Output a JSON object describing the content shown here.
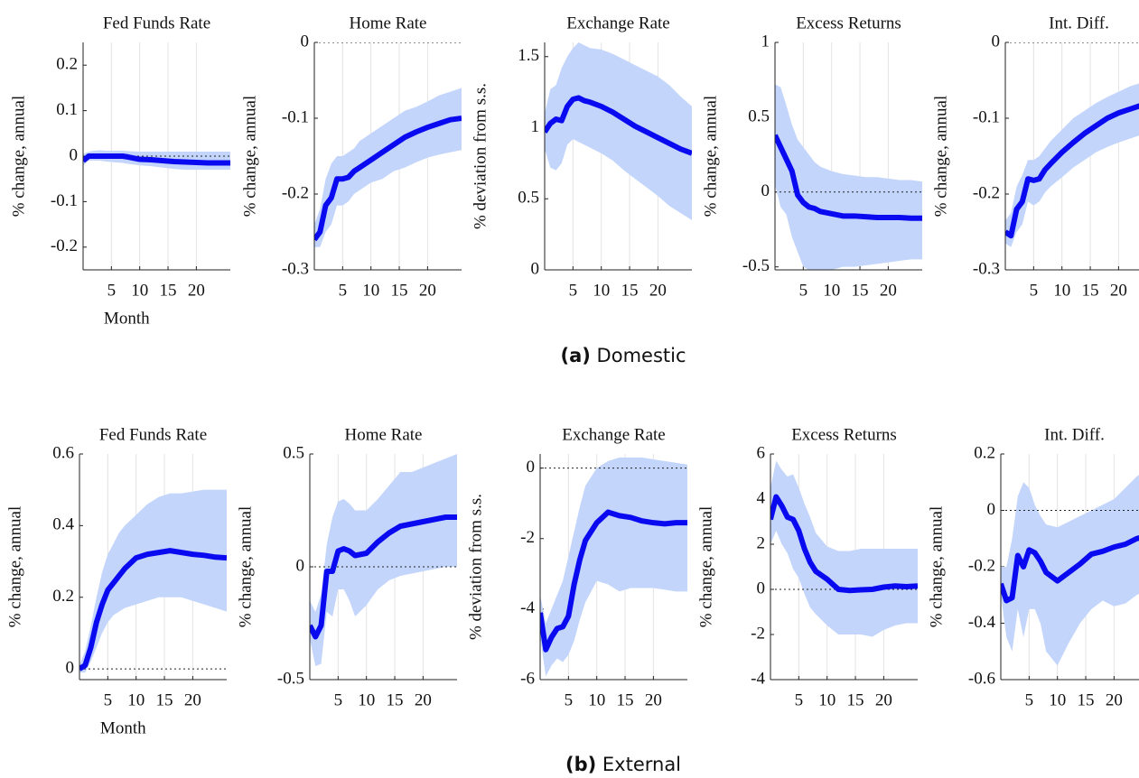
{
  "chart_data": [
    {
      "type": "line",
      "title": "Fed Funds Rate",
      "ylabel": "% change, annual",
      "xlabel": "Month",
      "x": [
        0,
        1,
        2,
        3,
        4,
        5,
        6,
        7,
        8,
        10,
        12,
        14,
        16,
        18,
        20,
        22,
        24,
        26
      ],
      "xlim": [
        0,
        26
      ],
      "xticks": [
        5,
        10,
        15,
        20
      ],
      "ylim": [
        -0.25,
        0.25
      ],
      "yticks": [
        -0.2,
        -0.1,
        0,
        0.1,
        0.2
      ],
      "grid": "x",
      "reference_line": 0,
      "series": [
        {
          "color": "#0a0af0",
          "values": [
            -0.01,
            0,
            0,
            0,
            0,
            0,
            0,
            0,
            -0.002,
            -0.007,
            -0.008,
            -0.01,
            -0.012,
            -0.013,
            -0.014,
            -0.015,
            -0.015,
            -0.015
          ]
        }
      ],
      "band": {
        "color": "#c3d5fb",
        "upper": [
          0.005,
          0.01,
          0.012,
          0.013,
          0.012,
          0.012,
          0.012,
          0.012,
          0.011,
          0.01,
          0.01,
          0.01,
          0.01,
          0.01,
          0.01,
          0.01,
          0.01,
          0.01
        ],
        "lower": [
          -0.02,
          -0.01,
          -0.01,
          -0.01,
          -0.012,
          -0.013,
          -0.014,
          -0.015,
          -0.017,
          -0.02,
          -0.022,
          -0.025,
          -0.028,
          -0.03,
          -0.03,
          -0.03,
          -0.03,
          -0.03
        ]
      }
    },
    {
      "type": "line",
      "title": "Home Rate",
      "ylabel": "% change, annual",
      "x": [
        0,
        1,
        2,
        3,
        4,
        5,
        6,
        7,
        8,
        10,
        12,
        14,
        16,
        18,
        20,
        22,
        24,
        26
      ],
      "xlim": [
        0,
        26
      ],
      "xticks": [
        5,
        10,
        15,
        20
      ],
      "ylim": [
        -0.3,
        0
      ],
      "yticks": [
        -0.3,
        -0.2,
        -0.1,
        0
      ],
      "grid": "x",
      "reference_line": 0,
      "series": [
        {
          "color": "#0a0af0",
          "values": [
            -0.26,
            -0.25,
            -0.215,
            -0.205,
            -0.18,
            -0.18,
            -0.178,
            -0.17,
            -0.165,
            -0.155,
            -0.145,
            -0.135,
            -0.125,
            -0.118,
            -0.112,
            -0.107,
            -0.102,
            -0.1
          ]
        }
      ],
      "band": {
        "color": "#c3d5fb",
        "upper": [
          -0.24,
          -0.22,
          -0.18,
          -0.16,
          -0.15,
          -0.15,
          -0.145,
          -0.14,
          -0.13,
          -0.12,
          -0.11,
          -0.1,
          -0.09,
          -0.085,
          -0.078,
          -0.07,
          -0.065,
          -0.06
        ],
        "lower": [
          -0.27,
          -0.27,
          -0.25,
          -0.24,
          -0.215,
          -0.215,
          -0.21,
          -0.2,
          -0.195,
          -0.185,
          -0.18,
          -0.17,
          -0.165,
          -0.158,
          -0.152,
          -0.148,
          -0.145,
          -0.142
        ]
      }
    },
    {
      "type": "line",
      "title": "Exchange Rate",
      "ylabel": "% deviation from s.s.",
      "x": [
        0,
        1,
        2,
        3,
        4,
        5,
        6,
        7,
        8,
        10,
        12,
        14,
        16,
        18,
        20,
        22,
        24,
        26
      ],
      "xlim": [
        0,
        26
      ],
      "xticks": [
        5,
        10,
        15,
        20
      ],
      "ylim": [
        0,
        1.6
      ],
      "yticks": [
        0,
        0.5,
        1,
        1.5
      ],
      "grid": "x",
      "reference_line": 0,
      "series": [
        {
          "color": "#0a0af0",
          "values": [
            0.97,
            1.03,
            1.06,
            1.05,
            1.15,
            1.2,
            1.21,
            1.19,
            1.18,
            1.15,
            1.11,
            1.06,
            1.01,
            0.97,
            0.93,
            0.89,
            0.85,
            0.82
          ]
        }
      ],
      "band": {
        "color": "#c3d5fb",
        "upper": [
          1.1,
          1.27,
          1.3,
          1.42,
          1.5,
          1.56,
          1.6,
          1.58,
          1.56,
          1.55,
          1.52,
          1.48,
          1.44,
          1.4,
          1.36,
          1.3,
          1.22,
          1.15
        ],
        "lower": [
          0.85,
          0.72,
          0.7,
          0.75,
          0.88,
          0.92,
          0.9,
          0.88,
          0.86,
          0.82,
          0.77,
          0.7,
          0.64,
          0.58,
          0.52,
          0.45,
          0.4,
          0.35
        ]
      }
    },
    {
      "type": "line",
      "title": "Excess Returns",
      "ylabel": "% change, annual",
      "x": [
        0,
        1,
        2,
        3,
        4,
        5,
        6,
        7,
        8,
        10,
        12,
        14,
        16,
        18,
        20,
        22,
        24,
        26
      ],
      "xlim": [
        0,
        26
      ],
      "xticks": [
        5,
        10,
        15,
        20
      ],
      "ylim": [
        -0.52,
        1
      ],
      "yticks": [
        -0.5,
        0,
        0.5,
        1
      ],
      "grid": "x",
      "reference_line": 0,
      "series": [
        {
          "color": "#0a0af0",
          "values": [
            0.38,
            0.3,
            0.22,
            0.14,
            -0.02,
            -0.07,
            -0.1,
            -0.11,
            -0.13,
            -0.145,
            -0.16,
            -0.16,
            -0.165,
            -0.17,
            -0.17,
            -0.17,
            -0.175,
            -0.175
          ]
        }
      ],
      "band": {
        "color": "#c3d5fb",
        "upper": [
          0.72,
          0.7,
          0.58,
          0.45,
          0.35,
          0.3,
          0.25,
          0.2,
          0.17,
          0.14,
          0.12,
          0.11,
          0.1,
          0.1,
          0.09,
          0.08,
          0.08,
          0.07
        ],
        "lower": [
          0.05,
          -0.1,
          -0.15,
          -0.3,
          -0.4,
          -0.5,
          -0.52,
          -0.52,
          -0.52,
          -0.52,
          -0.5,
          -0.5,
          -0.49,
          -0.48,
          -0.47,
          -0.46,
          -0.45,
          -0.45
        ]
      }
    },
    {
      "type": "line",
      "title": "Int. Diff.",
      "ylabel": "% change, annual",
      "x": [
        0,
        1,
        2,
        3,
        4,
        5,
        6,
        7,
        8,
        10,
        12,
        14,
        16,
        18,
        20,
        22,
        24,
        26
      ],
      "xlim": [
        0,
        26
      ],
      "xticks": [
        5,
        10,
        15,
        20
      ],
      "ylim": [
        -0.3,
        0
      ],
      "yticks": [
        -0.3,
        -0.2,
        -0.1,
        0
      ],
      "grid": "x",
      "reference_line": 0,
      "series": [
        {
          "color": "#0a0af0",
          "values": [
            -0.25,
            -0.255,
            -0.22,
            -0.21,
            -0.18,
            -0.182,
            -0.18,
            -0.168,
            -0.16,
            -0.145,
            -0.132,
            -0.12,
            -0.11,
            -0.1,
            -0.093,
            -0.088,
            -0.083,
            -0.08
          ]
        }
      ],
      "band": {
        "color": "#c3d5fb",
        "upper": [
          -0.235,
          -0.225,
          -0.19,
          -0.175,
          -0.155,
          -0.155,
          -0.15,
          -0.14,
          -0.13,
          -0.115,
          -0.1,
          -0.09,
          -0.08,
          -0.072,
          -0.065,
          -0.058,
          -0.053,
          -0.05
        ],
        "lower": [
          -0.265,
          -0.27,
          -0.25,
          -0.24,
          -0.21,
          -0.215,
          -0.21,
          -0.198,
          -0.19,
          -0.178,
          -0.165,
          -0.155,
          -0.145,
          -0.138,
          -0.132,
          -0.127,
          -0.122,
          -0.12
        ]
      }
    },
    {
      "type": "line",
      "title": "Fed Funds Rate",
      "ylabel": "% change, annual",
      "xlabel": "Month",
      "x": [
        0,
        1,
        2,
        3,
        4,
        5,
        6,
        7,
        8,
        10,
        12,
        14,
        16,
        18,
        20,
        22,
        24,
        26
      ],
      "xlim": [
        0,
        26
      ],
      "xticks": [
        5,
        10,
        15,
        20
      ],
      "ylim": [
        -0.03,
        0.6
      ],
      "yticks": [
        0,
        0.2,
        0.4,
        0.6
      ],
      "grid": "x",
      "reference_line": 0,
      "series": [
        {
          "color": "#0a0af0",
          "values": [
            0,
            0.01,
            0.06,
            0.13,
            0.18,
            0.22,
            0.24,
            0.26,
            0.28,
            0.31,
            0.32,
            0.325,
            0.33,
            0.325,
            0.32,
            0.317,
            0.312,
            0.31
          ]
        }
      ],
      "band": {
        "color": "#c3d5fb",
        "upper": [
          0.01,
          0.05,
          0.12,
          0.2,
          0.27,
          0.32,
          0.35,
          0.38,
          0.4,
          0.43,
          0.46,
          0.48,
          0.49,
          0.49,
          0.495,
          0.5,
          0.5,
          0.5
        ],
        "lower": [
          -0.01,
          -0.01,
          0.02,
          0.06,
          0.1,
          0.13,
          0.15,
          0.16,
          0.17,
          0.18,
          0.19,
          0.2,
          0.2,
          0.2,
          0.19,
          0.18,
          0.17,
          0.16
        ]
      }
    },
    {
      "type": "line",
      "title": "Home Rate",
      "ylabel": "% change, annual",
      "x": [
        0,
        1,
        2,
        3,
        4,
        5,
        6,
        7,
        8,
        10,
        12,
        14,
        16,
        18,
        20,
        22,
        24,
        26
      ],
      "xlim": [
        0,
        26
      ],
      "xticks": [
        5,
        10,
        15,
        20
      ],
      "ylim": [
        -0.5,
        0.5
      ],
      "yticks": [
        -0.5,
        0,
        0.5
      ],
      "grid": "x",
      "reference_line": 0,
      "series": [
        {
          "color": "#0a0af0",
          "values": [
            -0.26,
            -0.31,
            -0.26,
            -0.02,
            -0.02,
            0.07,
            0.08,
            0.07,
            0.05,
            0.06,
            0.11,
            0.15,
            0.18,
            0.19,
            0.2,
            0.21,
            0.22,
            0.22
          ]
        }
      ],
      "band": {
        "color": "#c3d5fb",
        "upper": [
          -0.15,
          -0.2,
          -0.12,
          0.1,
          0.22,
          0.29,
          0.3,
          0.28,
          0.25,
          0.25,
          0.3,
          0.36,
          0.42,
          0.42,
          0.44,
          0.46,
          0.48,
          0.5
        ],
        "lower": [
          -0.32,
          -0.44,
          -0.43,
          -0.2,
          -0.22,
          -0.1,
          -0.1,
          -0.15,
          -0.22,
          -0.17,
          -0.1,
          -0.06,
          -0.04,
          -0.03,
          -0.02,
          -0.01,
          0,
          0
        ]
      }
    },
    {
      "type": "line",
      "title": "Exchange Rate",
      "ylabel": "% deviation from s.s.",
      "x": [
        0,
        1,
        2,
        3,
        4,
        5,
        6,
        7,
        8,
        10,
        12,
        14,
        16,
        18,
        20,
        22,
        24,
        26
      ],
      "xlim": [
        0,
        26
      ],
      "xticks": [
        5,
        10,
        15,
        20
      ],
      "ylim": [
        -6,
        0.4
      ],
      "yticks": [
        -6,
        -4,
        -2,
        0
      ],
      "grid": "x",
      "reference_line": 0,
      "series": [
        {
          "color": "#0a0af0",
          "values": [
            -4.1,
            -5.15,
            -4.8,
            -4.55,
            -4.5,
            -4.2,
            -3.3,
            -2.6,
            -2.05,
            -1.55,
            -1.25,
            -1.35,
            -1.4,
            -1.5,
            -1.55,
            -1.58,
            -1.55,
            -1.55
          ]
        }
      ],
      "band": {
        "color": "#c3d5fb",
        "upper": [
          -3.6,
          -4.4,
          -4,
          -3.6,
          -3.2,
          -2.5,
          -1.8,
          -1.1,
          -0.5,
          0,
          0.2,
          0.3,
          0.3,
          0.3,
          0.25,
          0.2,
          0.15,
          0.1
        ],
        "lower": [
          -4.8,
          -5.9,
          -5.6,
          -5.4,
          -5.5,
          -5.3,
          -4.9,
          -4.3,
          -3.8,
          -3.2,
          -3.3,
          -3.5,
          -3.4,
          -3.4,
          -3.4,
          -3.45,
          -3.5,
          -3.5
        ]
      }
    },
    {
      "type": "line",
      "title": "Excess Returns",
      "ylabel": "% change, annual",
      "x": [
        0,
        1,
        2,
        3,
        4,
        5,
        6,
        7,
        8,
        10,
        12,
        14,
        16,
        18,
        20,
        22,
        24,
        26
      ],
      "xlim": [
        0,
        26
      ],
      "xticks": [
        5,
        10,
        15,
        20
      ],
      "ylim": [
        -4,
        6
      ],
      "yticks": [
        -4,
        -2,
        0,
        2,
        4,
        6
      ],
      "grid": "x",
      "reference_line": 0,
      "series": [
        {
          "color": "#0a0af0",
          "values": [
            3.1,
            4.1,
            3.7,
            3.2,
            3.1,
            2.6,
            1.8,
            1.2,
            0.8,
            0.45,
            0,
            -0.05,
            -0.02,
            0,
            0.1,
            0.15,
            0.12,
            0.15
          ]
        }
      ],
      "band": {
        "color": "#c3d5fb",
        "upper": [
          4.5,
          5.7,
          5.3,
          5,
          5.1,
          4.5,
          3.8,
          3.2,
          2.5,
          1.9,
          1.7,
          1.7,
          1.8,
          1.8,
          1.8,
          1.8,
          1.8,
          1.8
        ],
        "lower": [
          2,
          2.6,
          2,
          1.6,
          0.9,
          0.5,
          -0.2,
          -0.8,
          -1.1,
          -1.6,
          -2,
          -2,
          -2,
          -2.1,
          -1.8,
          -1.6,
          -1.5,
          -1.5
        ]
      }
    },
    {
      "type": "line",
      "title": "Int. Diff.",
      "ylabel": "% change, annual",
      "x": [
        0,
        1,
        2,
        3,
        4,
        5,
        6,
        7,
        8,
        10,
        12,
        14,
        16,
        18,
        20,
        22,
        24,
        26
      ],
      "xlim": [
        0,
        26
      ],
      "xticks": [
        5,
        10,
        15,
        20
      ],
      "ylim": [
        -0.6,
        0.2
      ],
      "yticks": [
        -0.6,
        -0.4,
        -0.2,
        0,
        0.2
      ],
      "grid": "x",
      "reference_line": 0,
      "series": [
        {
          "color": "#0a0af0",
          "values": [
            -0.26,
            -0.32,
            -0.31,
            -0.16,
            -0.2,
            -0.14,
            -0.15,
            -0.18,
            -0.22,
            -0.25,
            -0.22,
            -0.19,
            -0.155,
            -0.145,
            -0.13,
            -0.12,
            -0.1,
            -0.09
          ]
        }
      ],
      "band": {
        "color": "#c3d5fb",
        "upper": [
          -0.2,
          -0.2,
          -0.1,
          0.05,
          0.1,
          0.08,
          0.02,
          -0.02,
          -0.05,
          -0.06,
          -0.04,
          -0.02,
          0,
          0.02,
          0.04,
          0.08,
          0.12,
          0.15
        ],
        "lower": [
          -0.3,
          -0.45,
          -0.5,
          -0.35,
          -0.45,
          -0.35,
          -0.35,
          -0.4,
          -0.5,
          -0.55,
          -0.47,
          -0.4,
          -0.35,
          -0.32,
          -0.34,
          -0.33,
          -0.3,
          -0.28
        ]
      }
    }
  ],
  "captions": [
    {
      "label": "(a)",
      "text": "Domestic"
    },
    {
      "label": "(b)",
      "text": "External"
    }
  ]
}
